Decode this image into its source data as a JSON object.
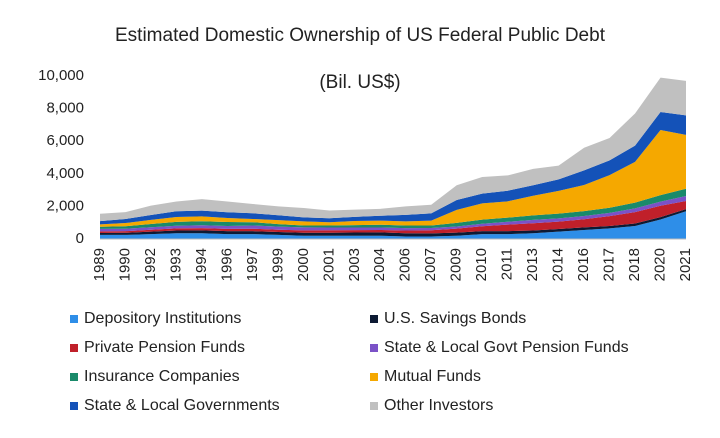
{
  "chart_data": {
    "type": "stacked-area",
    "title": "Estimated Domestic Ownership of US Federal Public Debt",
    "subtitle": "(Bil. US$)",
    "categories": [
      "1989",
      "1990",
      "1992",
      "1993",
      "1994",
      "1996",
      "1997",
      "1999",
      "2000",
      "2001",
      "2003",
      "2004",
      "2006",
      "2007",
      "2009",
      "2010",
      "2011",
      "2013",
      "2014",
      "2016",
      "2017",
      "2018",
      "2020",
      "2021"
    ],
    "ylim": [
      0,
      10000
    ],
    "yticks": [
      0,
      {
        "value": 2000,
        "label": "2,000"
      },
      {
        "value": 4000,
        "label": "4,000"
      },
      {
        "value": 6000,
        "label": "6,000"
      },
      {
        "value": 8000,
        "label": "8,000"
      },
      {
        "value": 10000,
        "label": "10,000"
      }
    ],
    "series": [
      {
        "name": "Depository Institutions",
        "color": "#2e8ee8",
        "values": [
          250,
          250,
          300,
          350,
          350,
          300,
          300,
          250,
          200,
          200,
          200,
          200,
          150,
          150,
          200,
          300,
          300,
          350,
          450,
          550,
          650,
          800,
          1200,
          1700
        ]
      },
      {
        "name": "U.S. Savings Bonds",
        "color": "#0d1a33",
        "values": [
          120,
          130,
          150,
          170,
          180,
          180,
          180,
          180,
          180,
          185,
          195,
          205,
          200,
          195,
          190,
          185,
          180,
          170,
          165,
          160,
          150,
          150,
          140,
          135
        ]
      },
      {
        "name": "Private Pension Funds",
        "color": "#c0202a",
        "values": [
          100,
          100,
          120,
          130,
          140,
          140,
          150,
          140,
          150,
          150,
          150,
          150,
          170,
          190,
          250,
          300,
          400,
          450,
          450,
          500,
          600,
          700,
          700,
          500
        ]
      },
      {
        "name": "State & Local Govt Pension Funds",
        "color": "#7b52c7",
        "values": [
          150,
          150,
          150,
          160,
          170,
          180,
          200,
          190,
          180,
          170,
          160,
          150,
          150,
          140,
          130,
          150,
          180,
          200,
          200,
          200,
          200,
          230,
          250,
          300
        ]
      },
      {
        "name": "Insurance Companies",
        "color": "#1a8a6a",
        "values": [
          130,
          150,
          200,
          240,
          250,
          240,
          200,
          150,
          120,
          120,
          150,
          170,
          160,
          150,
          220,
          250,
          250,
          280,
          290,
          300,
          320,
          350,
          400,
          450
        ]
      },
      {
        "name": "Mutual Funds",
        "color": "#f5a800",
        "values": [
          150,
          200,
          250,
          300,
          300,
          250,
          200,
          250,
          250,
          200,
          250,
          250,
          250,
          300,
          800,
          1000,
          1000,
          1200,
          1400,
          1600,
          2000,
          2500,
          4000,
          3300
        ]
      },
      {
        "name": "State & Local Governments",
        "color": "#1452b8",
        "values": [
          200,
          250,
          300,
          350,
          350,
          350,
          350,
          300,
          250,
          250,
          250,
          300,
          400,
          450,
          600,
          600,
          650,
          650,
          700,
          900,
          900,
          1000,
          1100,
          1200
        ]
      },
      {
        "name": "Other Investors",
        "color": "#c0c0c0",
        "values": [
          450,
          420,
          580,
          600,
          710,
          660,
          570,
          540,
          570,
          475,
          445,
          425,
          520,
          525,
          910,
          1015,
          940,
          1000,
          845,
          1390,
          1380,
          1970,
          2110,
          2115
        ]
      }
    ]
  }
}
